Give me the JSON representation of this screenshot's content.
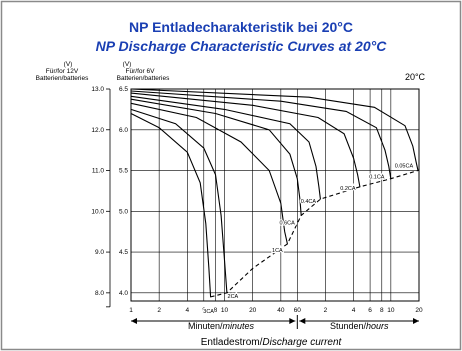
{
  "chart_data": {
    "type": "line",
    "title": "NP Entladecharakteristik bei 20°C",
    "subtitle": "NP Discharge Characteristic Curves at 20°C",
    "temperature_label": "20°C",
    "y_axis_left": {
      "unit": "(V)",
      "label_line1": "Für/for 12V",
      "label_line2": "Batterien/batteries",
      "ticks": [
        "13.0",
        "12.0",
        "11.0",
        "10.0",
        "9.0",
        "8.0"
      ],
      "ylim": [
        7.8,
        13.0
      ]
    },
    "y_axis_right": {
      "unit": "(V)",
      "label_line1": "Für/for 6V",
      "label_line2": "Batterien/batteries",
      "ticks": [
        "6.5",
        "6.0",
        "5.5",
        "5.0",
        "4.5",
        "4.0"
      ],
      "ylim": [
        3.9,
        6.5
      ]
    },
    "x_axis": {
      "scale": "log",
      "unit": "minutes",
      "xlim": [
        1,
        1200
      ],
      "minute_ticks": [
        {
          "value": 1,
          "label": "1"
        },
        {
          "value": 2,
          "label": "2"
        },
        {
          "value": 4,
          "label": "4"
        },
        {
          "value": 6,
          "label": "6"
        },
        {
          "value": 8,
          "label": "8"
        },
        {
          "value": 10,
          "label": "10"
        },
        {
          "value": 20,
          "label": "20"
        },
        {
          "value": 40,
          "label": "40"
        },
        {
          "value": 60,
          "label": "60"
        }
      ],
      "hour_ticks": [
        {
          "value": 120,
          "label": "2"
        },
        {
          "value": 240,
          "label": "4"
        },
        {
          "value": 360,
          "label": "6"
        },
        {
          "value": 480,
          "label": "8"
        },
        {
          "value": 600,
          "label": "10"
        },
        {
          "value": 1200,
          "label": "20"
        }
      ],
      "minutes_label": "Minuten/",
      "minutes_label_italic": "minutes",
      "hours_label": "Stunden/",
      "hours_label_italic": "hours",
      "title": "Entladestrom/",
      "title_italic": "Discharge current"
    },
    "series": [
      {
        "name": "3CA",
        "x": [
          1,
          2,
          4,
          5.5,
          6.3,
          6.8,
          7.1
        ],
        "y": [
          12.4,
          12.05,
          11.45,
          10.7,
          9.7,
          8.6,
          7.9
        ]
      },
      {
        "name": "2CA",
        "x": [
          1,
          3,
          6,
          8,
          9.2,
          10,
          10.6
        ],
        "y": [
          12.5,
          12.15,
          11.55,
          10.9,
          9.9,
          8.8,
          8.0
        ]
      },
      {
        "name": "1CA",
        "x": [
          1,
          5,
          15,
          30,
          40,
          44,
          47
        ],
        "y": [
          12.65,
          12.3,
          11.7,
          11.0,
          10.2,
          9.5,
          9.2
        ]
      },
      {
        "name": "0.6CA",
        "x": [
          1,
          8,
          30,
          50,
          60,
          64,
          66
        ],
        "y": [
          12.75,
          12.4,
          12.0,
          11.4,
          10.8,
          10.3,
          9.9
        ]
      },
      {
        "name": "0.4CA",
        "x": [
          1,
          10,
          50,
          80,
          95,
          102,
          106
        ],
        "y": [
          12.82,
          12.5,
          12.15,
          11.7,
          11.1,
          10.6,
          10.3
        ]
      },
      {
        "name": "0.2CA",
        "x": [
          1,
          20,
          100,
          190,
          240,
          265,
          280
        ],
        "y": [
          12.9,
          12.6,
          12.3,
          11.9,
          11.3,
          10.9,
          10.6
        ]
      },
      {
        "name": "0.1CA",
        "x": [
          1,
          40,
          200,
          420,
          520,
          570,
          600
        ],
        "y": [
          12.95,
          12.7,
          12.45,
          12.05,
          11.5,
          11.1,
          10.8
        ]
      },
      {
        "name": "0.05CA",
        "x": [
          1,
          80,
          400,
          850,
          1030,
          1120,
          1170
        ],
        "y": [
          13.0,
          12.8,
          12.55,
          12.1,
          11.6,
          11.2,
          11.0
        ]
      }
    ],
    "final_voltage_curve": {
      "style": "dashed",
      "x": [
        7.1,
        10.6,
        20,
        47,
        66,
        106,
        280,
        600,
        1170
      ],
      "y": [
        7.9,
        8.0,
        8.6,
        9.2,
        9.9,
        10.3,
        10.6,
        10.8,
        11.0
      ]
    },
    "grid": true,
    "colors": {
      "title": "#1a3fb3",
      "frame": "#8a8a8a",
      "line": "#000000"
    }
  }
}
